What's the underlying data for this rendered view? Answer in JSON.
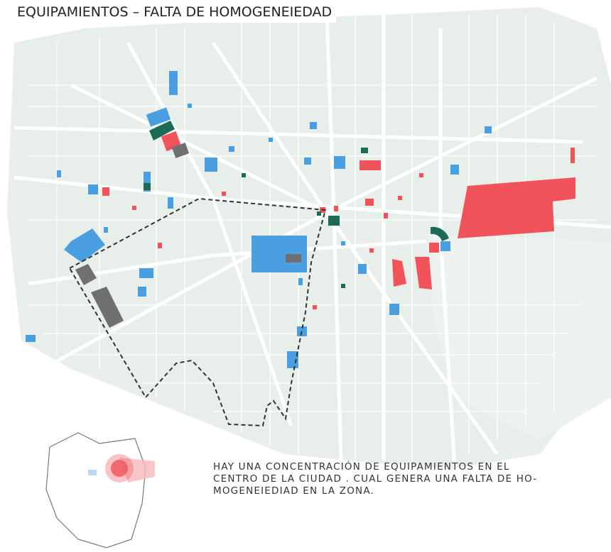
{
  "header": {
    "title": "EQUIPAMIENTOS – FALTA DE HOMOGENEIEDAD"
  },
  "caption": {
    "lines": [
      "HAY UNA CONCENTRACIÓN DE EQUIPAMIENTOS EN EL",
      "CENTRO DE LA CIUDAD . CUAL GENERA UNA FALTA DE HO-",
      "MOGENEIEDIAD EN LA ZONA."
    ]
  }
}
